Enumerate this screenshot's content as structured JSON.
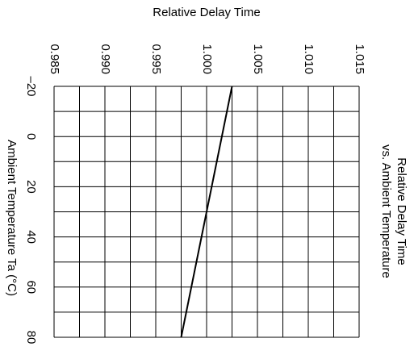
{
  "chart_data": {
    "type": "line",
    "orientation": "horizontal",
    "title": [
      "Relative Delay Time",
      "vs. Ambient Temperature"
    ],
    "y_label": "Relative Delay Time",
    "x_label": "Ambient Temperature  Ta  (°C)",
    "x": [
      -20,
      80
    ],
    "series": [
      {
        "name": null,
        "color": "#000000",
        "values": [
          1.0025,
          0.9975
        ]
      }
    ],
    "xlim": [
      -20,
      80
    ],
    "xticks": [
      {
        "value": -20,
        "label": "–20"
      },
      0,
      20,
      40,
      60,
      80
    ],
    "xminor": [
      -10,
      10,
      30,
      50,
      70
    ],
    "ylim": [
      0.985,
      1.015
    ],
    "yticks": [
      0.985,
      {
        "value": 0.99,
        "label": "0.990"
      },
      0.995,
      {
        "value": 1,
        "label": "1.000"
      },
      1.005,
      {
        "value": 1.01,
        "label": "1.010"
      },
      1.015
    ],
    "yminor": [
      0.9875,
      0.9925,
      0.9975,
      1.0025,
      1.0075,
      1.0125
    ],
    "grid": true
  }
}
